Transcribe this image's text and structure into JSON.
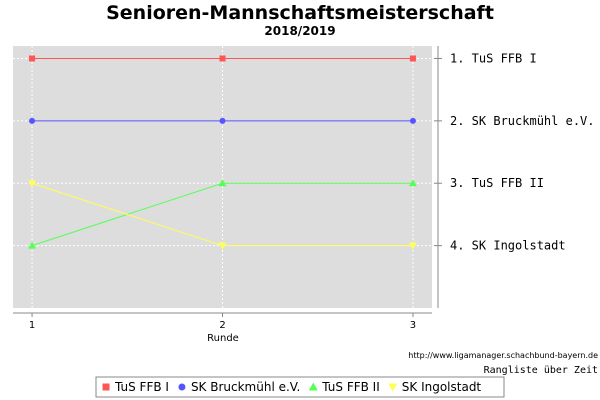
{
  "colors": {
    "plot_bg": "#dddddd",
    "grid": "#ffffff",
    "axis": "#888888"
  },
  "chart_data": {
    "type": "line",
    "title": "Senioren-Mannschaftsmeisterschaft",
    "subtitle": "2018/2019",
    "xlabel": "Runde",
    "x": [
      1,
      2,
      3
    ],
    "xlim": [
      0.9,
      3.1
    ],
    "ylim": [
      0.8,
      5.0
    ],
    "y_inverted": true,
    "grid": true,
    "rank_labels": [
      "1. TuS FFB I",
      "2. SK Bruckmühl e.V.",
      "3. TuS FFB II",
      "4. SK Ingolstadt"
    ],
    "source": "http://www.ligamanager.schachbund-bayern.de",
    "caption": "Rangliste über Zeit",
    "legend_position": "bottom",
    "series": [
      {
        "name": "TuS FFB I",
        "values": [
          1,
          1,
          1
        ],
        "color": "#ff5555",
        "marker": "square"
      },
      {
        "name": "SK Bruckmühl e.V.",
        "values": [
          2,
          2,
          2
        ],
        "color": "#5555ff",
        "marker": "circle"
      },
      {
        "name": "TuS FFB II",
        "values": [
          4,
          3,
          3
        ],
        "color": "#55ff55",
        "marker": "triangle"
      },
      {
        "name": "SK Ingolstadt",
        "values": [
          3,
          4,
          4
        ],
        "color": "#ffff55",
        "marker": "triangle-down"
      }
    ]
  }
}
